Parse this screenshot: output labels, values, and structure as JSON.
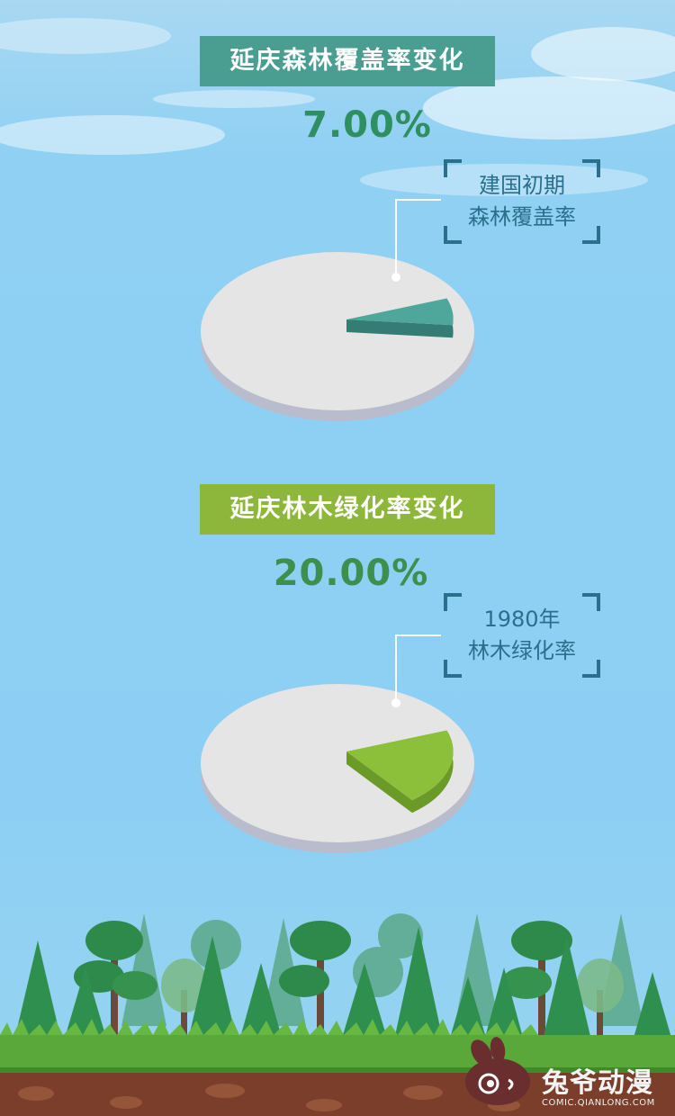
{
  "chart_data": [
    {
      "type": "pie",
      "title": "延庆森林覆盖率变化",
      "value_label": "7.00%",
      "values": [
        7.0,
        93.0
      ],
      "annotation": [
        "建国初期",
        "森林覆盖率"
      ],
      "colors": {
        "slice": "#4ea79a",
        "slice_side": "#357d74",
        "base": "#e5e5e5",
        "base_side": "#b8bccc"
      }
    },
    {
      "type": "pie",
      "title": "延庆林木绿化率变化",
      "value_label": "20.00%",
      "values": [
        20.0,
        80.0
      ],
      "annotation": [
        "1980年",
        "林木绿化率"
      ],
      "colors": {
        "slice": "#8cbf3a",
        "slice_side": "#6c9a28",
        "base": "#e5e5e5",
        "base_side": "#b8bccc"
      }
    }
  ],
  "watermark": {
    "main": "兔爷动漫",
    "sub": "COMIC.QIANLONG.COM"
  },
  "colors": {
    "sky": "#8dcff4",
    "accent_teal": "#4a9e91",
    "accent_green": "#8cb73a",
    "bracket": "#2a6f8c"
  }
}
